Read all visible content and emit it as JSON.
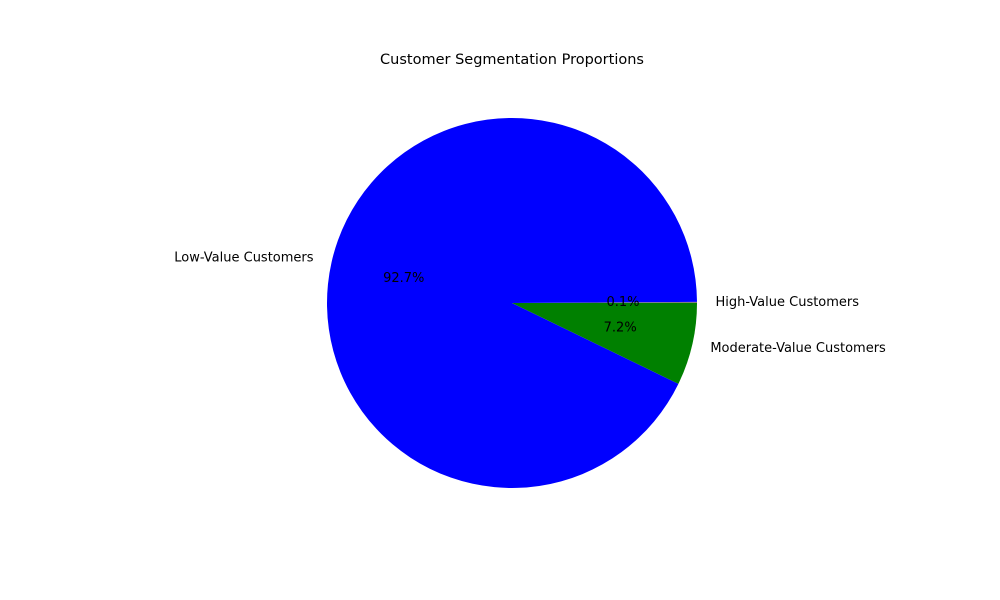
{
  "chart_data": {
    "type": "pie",
    "title": "Customer Segmentation Proportions",
    "start_angle_deg": 0,
    "direction": "counterclockwise",
    "slices": [
      {
        "label": "High-Value Customers",
        "value": 0.1,
        "pct_label": "0.1%",
        "color": "#808080"
      },
      {
        "label": "Low-Value Customers",
        "value": 92.7,
        "pct_label": "92.7%",
        "color": "#0000ff"
      },
      {
        "label": "Moderate-Value Customers",
        "value": 7.2,
        "pct_label": "7.2%",
        "color": "#008000"
      }
    ]
  }
}
